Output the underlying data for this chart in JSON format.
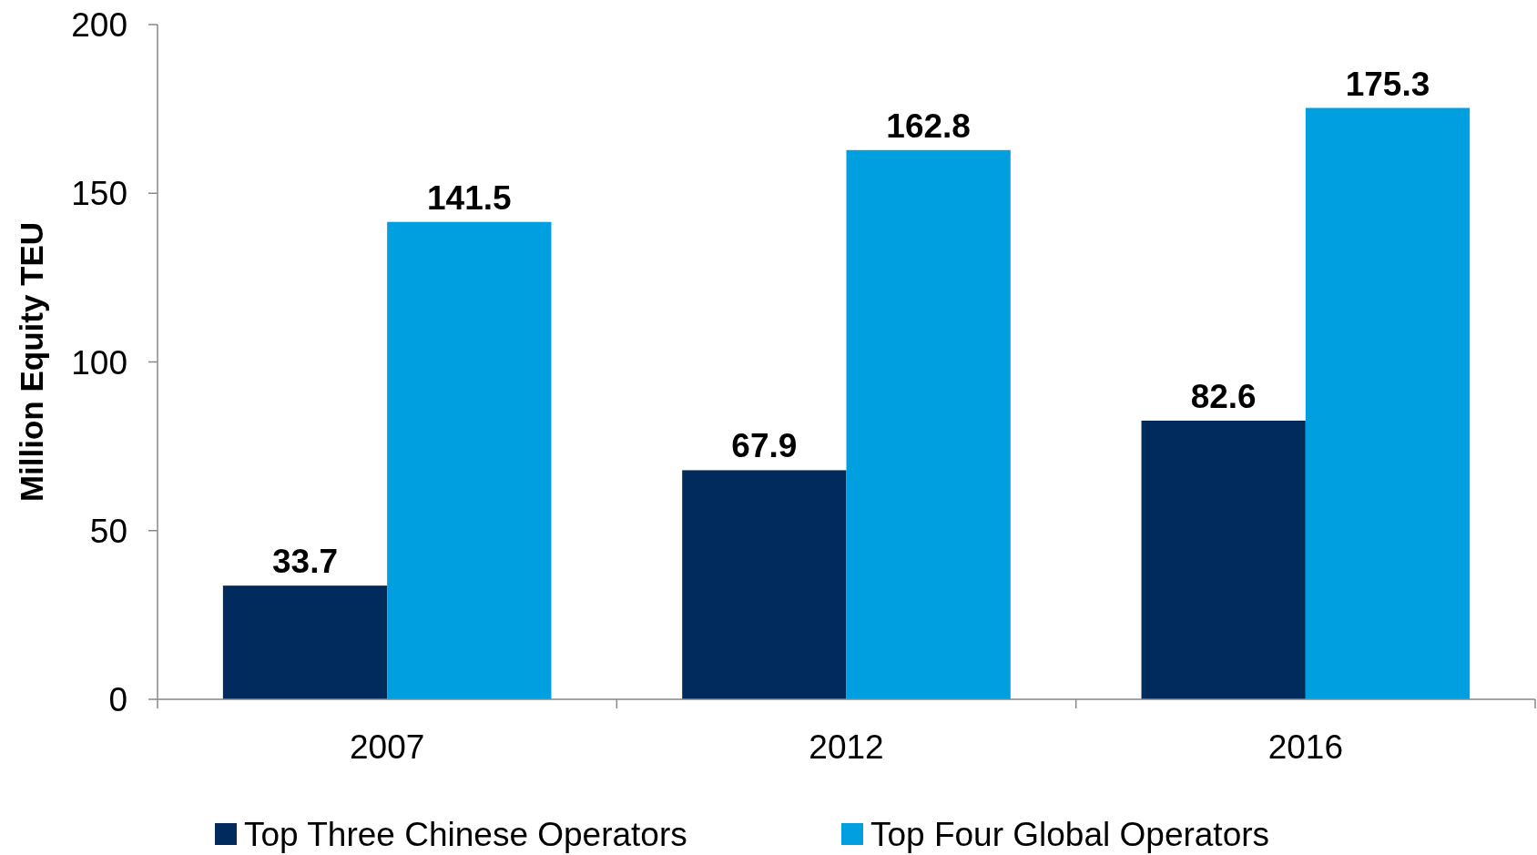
{
  "chart_data": {
    "type": "bar",
    "ylabel": "Million Equity TEU",
    "categories": [
      "2007",
      "2012",
      "2016"
    ],
    "series": [
      {
        "name": "Top Three Chinese Operators",
        "color": "#002b5c",
        "values": [
          33.7,
          67.9,
          82.6
        ]
      },
      {
        "name": "Top Four Global Operators",
        "color": "#009fdf",
        "values": [
          141.5,
          162.8,
          175.3
        ]
      }
    ],
    "ylim": [
      0,
      200
    ],
    "yticks": [
      0,
      50,
      100,
      150,
      200
    ],
    "data_labels": true,
    "legend": "bottom",
    "grid": false
  }
}
